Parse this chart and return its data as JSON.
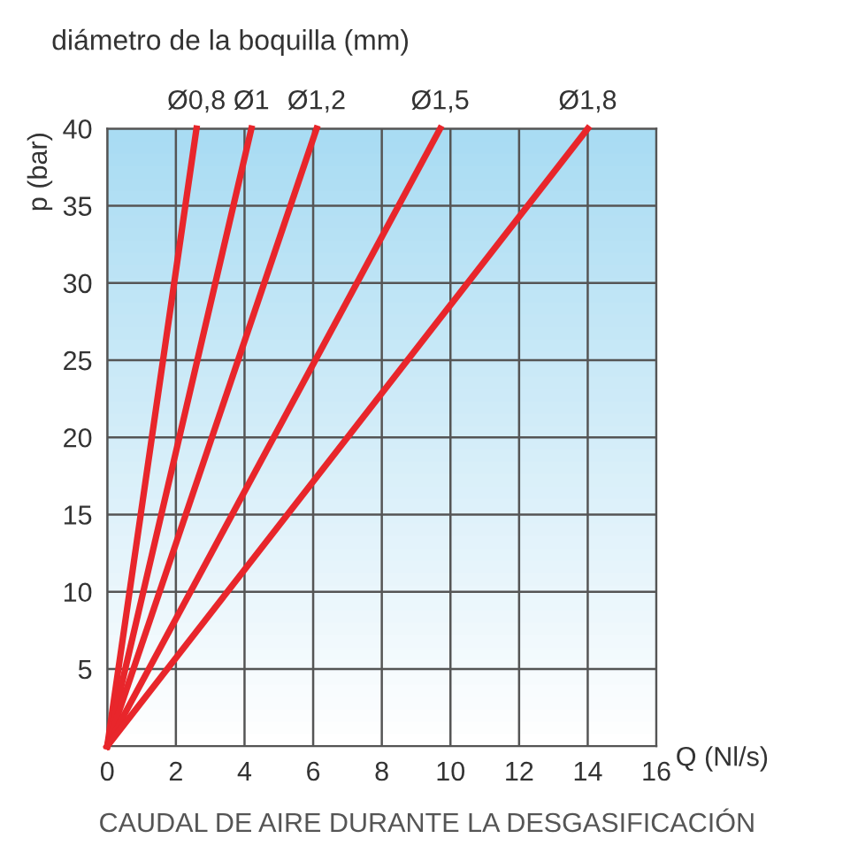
{
  "chart_data": {
    "type": "line",
    "title": "diámetro de la boquilla (mm)",
    "xlabel": "Q (Nl/s)",
    "ylabel": "p (bar)",
    "xlim": [
      0,
      16
    ],
    "ylim": [
      0,
      40
    ],
    "xticks": [
      0,
      2,
      4,
      6,
      8,
      10,
      12,
      14,
      16
    ],
    "yticks": [
      {
        "value": 0,
        "label": null
      },
      5,
      10,
      15,
      20,
      25,
      30,
      35,
      40
    ],
    "grid": true,
    "marker": "none",
    "line_style": "solid",
    "series": [
      {
        "name": "Ø0,8",
        "color": "#e8262b",
        "x": [
          0,
          2.6
        ],
        "values": [
          0,
          40
        ]
      },
      {
        "name": "Ø1",
        "color": "#e8262b",
        "x": [
          0,
          4.2
        ],
        "values": [
          0,
          40
        ]
      },
      {
        "name": "Ø1,2",
        "color": "#e8262b",
        "x": [
          0,
          6.1
        ],
        "values": [
          0,
          40
        ]
      },
      {
        "name": "Ø1,5",
        "color": "#e8262b",
        "x": [
          0,
          9.7
        ],
        "values": [
          0,
          40
        ]
      },
      {
        "name": "Ø1,8",
        "color": "#e8262b",
        "x": [
          0,
          14
        ],
        "values": [
          0,
          40
        ]
      }
    ],
    "annotations": [
      "CAUDAL DE AIRE DURANTE LA DESGASIFICACIÓN"
    ]
  }
}
